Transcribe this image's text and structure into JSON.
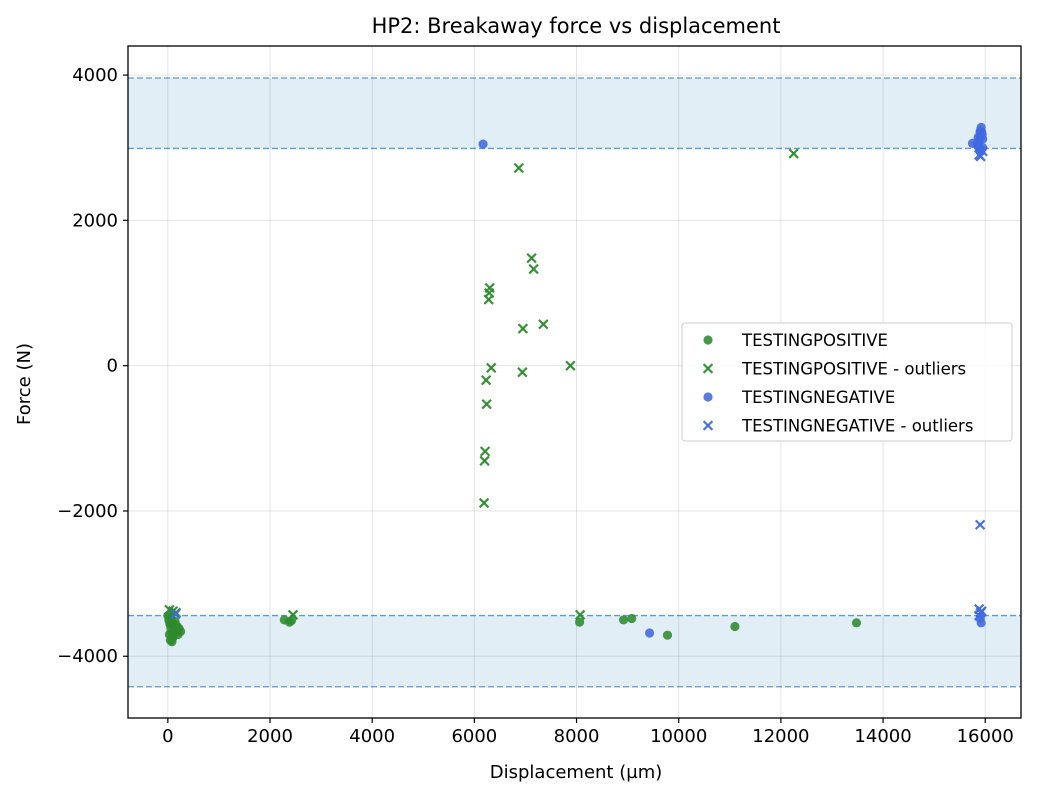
{
  "chart_data": {
    "type": "scatter",
    "title": "HP2: Breakaway force vs displacement",
    "xlabel": "Displacement (µm)",
    "ylabel": "Force (N)",
    "xlim": [
      -780,
      16700
    ],
    "ylim": [
      -4850,
      4400
    ],
    "xticks": [
      0,
      2000,
      4000,
      6000,
      8000,
      10000,
      12000,
      14000,
      16000
    ],
    "xtick_labels": [
      "0",
      "2000",
      "4000",
      "6000",
      "8000",
      "10000",
      "12000",
      "14000",
      "16000"
    ],
    "yticks": [
      -4000,
      -2000,
      0,
      2000,
      4000
    ],
    "ytick_labels": [
      "−4000",
      "−2000",
      "0",
      "2000",
      "4000"
    ],
    "grid": true,
    "legend_position": "center-right",
    "bands": [
      {
        "y0": 2990,
        "y1": 3960,
        "fill": "#e2eef6",
        "line": "#5b9bd5"
      },
      {
        "y0": -4420,
        "y1": -3440,
        "fill": "#e2eef6",
        "line": "#5b9bd5"
      }
    ],
    "series": [
      {
        "name": "TESTINGPOSITIVE",
        "marker": "circle",
        "color": "#2e8b2e",
        "points": [
          [
            0,
            -3440
          ],
          [
            20,
            -3500
          ],
          [
            40,
            -3560
          ],
          [
            60,
            -3620
          ],
          [
            80,
            -3680
          ],
          [
            100,
            -3740
          ],
          [
            50,
            -3780
          ],
          [
            80,
            -3800
          ],
          [
            120,
            -3560
          ],
          [
            150,
            -3600
          ],
          [
            180,
            -3650
          ],
          [
            200,
            -3700
          ],
          [
            220,
            -3620
          ],
          [
            250,
            -3660
          ],
          [
            100,
            -3590
          ],
          [
            140,
            -3520
          ],
          [
            60,
            -3460
          ],
          [
            30,
            -3520
          ],
          [
            90,
            -3550
          ],
          [
            170,
            -3580
          ],
          [
            30,
            -3700
          ],
          [
            110,
            -3720
          ],
          [
            190,
            -3600
          ],
          [
            130,
            -3640
          ],
          [
            2280,
            -3500
          ],
          [
            2380,
            -3530
          ],
          [
            2420,
            -3510
          ],
          [
            8060,
            -3530
          ],
          [
            8920,
            -3500
          ],
          [
            9080,
            -3480
          ],
          [
            9780,
            -3710
          ],
          [
            11100,
            -3590
          ],
          [
            13480,
            -3540
          ]
        ]
      },
      {
        "name": "TESTINGPOSITIVE - outliers",
        "marker": "x",
        "color": "#2e8b2e",
        "points": [
          [
            30,
            -3360
          ],
          [
            100,
            -3380
          ],
          [
            160,
            -3400
          ],
          [
            2450,
            -3430
          ],
          [
            8070,
            -3430
          ],
          [
            6870,
            2720
          ],
          [
            12250,
            2920
          ],
          [
            7120,
            1480
          ],
          [
            7160,
            1330
          ],
          [
            6300,
            1070
          ],
          [
            6290,
            1000
          ],
          [
            6280,
            910
          ],
          [
            7350,
            570
          ],
          [
            6950,
            510
          ],
          [
            6330,
            -30
          ],
          [
            6940,
            -90
          ],
          [
            7880,
            0
          ],
          [
            6230,
            -200
          ],
          [
            6240,
            -530
          ],
          [
            6210,
            -1180
          ],
          [
            6200,
            -1310
          ],
          [
            6190,
            -1890
          ]
        ]
      },
      {
        "name": "TESTINGNEGATIVE",
        "marker": "circle",
        "color": "#4169e1",
        "points": [
          [
            6170,
            3050
          ],
          [
            9430,
            -3680
          ],
          [
            15750,
            3060
          ],
          [
            15840,
            3040
          ],
          [
            15880,
            3100
          ],
          [
            15900,
            3160
          ],
          [
            15920,
            3280
          ],
          [
            15930,
            3220
          ],
          [
            15900,
            3200
          ],
          [
            15950,
            3120
          ],
          [
            15870,
            3010
          ],
          [
            15920,
            2970
          ],
          [
            15900,
            2950
          ],
          [
            15950,
            3000
          ],
          [
            15880,
            3080
          ],
          [
            15900,
            3230
          ],
          [
            15940,
            3180
          ],
          [
            15860,
            3140
          ],
          [
            15900,
            -3480
          ],
          [
            15920,
            -3540
          ]
        ]
      },
      {
        "name": "TESTINGNEGATIVE - outliers",
        "marker": "x",
        "color": "#4169e1",
        "points": [
          [
            150,
            -3420
          ],
          [
            15880,
            -3350
          ],
          [
            15910,
            -3400
          ],
          [
            15880,
            -3440
          ],
          [
            15930,
            -3380
          ],
          [
            15900,
            -2190
          ],
          [
            15880,
            2900
          ],
          [
            15910,
            2880
          ],
          [
            15950,
            2950
          ]
        ]
      }
    ]
  }
}
